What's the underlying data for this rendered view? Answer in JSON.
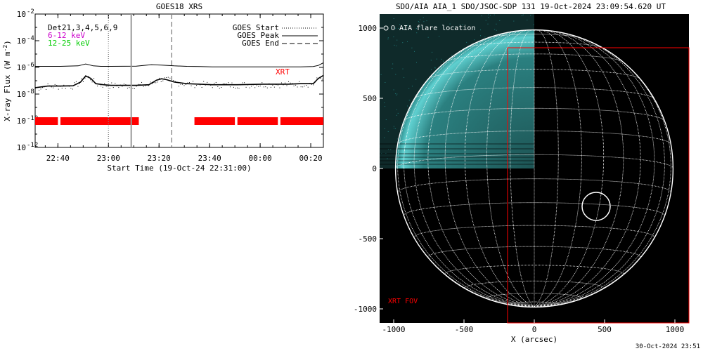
{
  "colors": {
    "flux_long": "#000000",
    "flux_short": "#000000",
    "xrt_bar": "#ff0000",
    "xrt_label": "#ff0000",
    "ch_6_12": "#cc00cc",
    "ch_12_25": "#00cc00",
    "aia_tint": "#33cccc",
    "grid": "#ffffff",
    "fov": "#ff0000"
  },
  "goes": {
    "title": "GOES18 XRS",
    "ylabel": "X-ray Flux (W m",
    "ylabel_sup": "-2",
    "ylabel_close": ")",
    "xlabel": "Start Time (19-Oct-24 22:31:00)",
    "channels": [
      "Det21,3,4,5,6,9",
      "6-12 keV",
      "12-25 keV"
    ],
    "legend": [
      "GOES Start",
      "GOES Peak",
      "GOES End"
    ],
    "xrt_label": "XRT",
    "yticks": [
      "10",
      "10",
      "10",
      "10",
      "10",
      "10"
    ],
    "ytick_exps": [
      "-2",
      "-4",
      "-6",
      "-8",
      "-10",
      "-12"
    ],
    "xticks": [
      "22:40",
      "23:00",
      "23:20",
      "23:40",
      "00:00",
      "00:20"
    ]
  },
  "aia": {
    "title": "SDO/AIA AIA_1 SDO/JSOC-SDP 131 19-Oct-2024 23:09:54.620 UT",
    "legend": "O AIA flare location",
    "fov_label": "XRT FOV",
    "xlabel": "X (arcsec)",
    "yticks": [
      "1000",
      "500",
      "0",
      "-500",
      "-1000"
    ],
    "xticks": [
      "-1000",
      "-500",
      "0",
      "500",
      "1000"
    ]
  },
  "footer": "30-Oct-2024 23:51",
  "chart_data": [
    {
      "type": "line",
      "title": "GOES18 XRS",
      "xlabel": "Start Time (19-Oct-24 22:31:00)",
      "ylabel": "X-ray Flux (W m-2)",
      "yscale": "log",
      "ylim": [
        1e-12,
        0.01
      ],
      "xlim_minutes_after_start": [
        0,
        114
      ],
      "x_unit": "minutes after 19-Oct-24 22:31:00",
      "series": [
        {
          "name": "6-12 keV",
          "x": [
            0,
            10,
            17,
            20,
            23,
            26,
            30,
            40,
            46,
            50,
            55,
            60,
            65,
            70,
            80,
            90,
            100,
            105,
            110,
            112,
            114
          ],
          "values": [
            1.2e-06,
            1.2e-06,
            1.3e-06,
            1.8e-06,
            1.3e-06,
            1.2e-06,
            1.2e-06,
            1.25e-06,
            1.6e-06,
            1.5e-06,
            1.3e-06,
            1.2e-06,
            1.15e-06,
            1.1e-06,
            1.1e-06,
            1.1e-06,
            1.1e-06,
            1.1e-06,
            1.15e-06,
            1.4e-06,
            2.2e-06
          ]
        },
        {
          "name": "12-25 keV",
          "x": [
            0,
            5,
            10,
            15,
            18,
            20,
            22,
            24,
            27,
            30,
            35,
            40,
            45,
            48,
            50,
            52,
            55,
            60,
            65,
            70,
            80,
            90,
            100,
            105,
            110,
            112,
            114
          ],
          "values": [
            3e-08,
            4e-08,
            4e-08,
            4.2e-08,
            8e-08,
            2.3e-07,
            1.5e-07,
            6e-08,
            5e-08,
            4.5e-08,
            4.5e-08,
            4.5e-08,
            5e-08,
            1.1e-07,
            1.4e-07,
            1.2e-07,
            8e-08,
            6e-08,
            5.5e-08,
            5e-08,
            5e-08,
            5.5e-08,
            5.5e-08,
            6e-08,
            6e-08,
            1.5e-07,
            2.5e-07
          ]
        }
      ],
      "markers": [
        {
          "name": "GOES Start",
          "style": "dotted",
          "x": 29
        },
        {
          "name": "GOES Peak",
          "style": "solid",
          "x": 38
        },
        {
          "name": "GOES End",
          "style": "dashed",
          "x": 54
        }
      ],
      "xrt_coverage": [
        [
          0,
          9
        ],
        [
          10,
          41
        ],
        [
          63,
          79
        ],
        [
          80,
          96
        ],
        [
          97,
          114
        ]
      ]
    },
    {
      "type": "scatter",
      "title": "SDO/AIA AIA_1 SDO/JSOC-SDP 131 19-Oct-2024 23:09:54.620 UT",
      "xlabel": "X (arcsec)",
      "xlim": [
        -1100,
        1100
      ],
      "ylim": [
        -1100,
        1100
      ],
      "solar_radius_arcsec": 987,
      "flare_location": {
        "x": 440,
        "y": -270,
        "radius": 100
      },
      "xrt_fov": {
        "x": [
          -190,
          1100
        ],
        "y": [
          -1100,
          860
        ]
      },
      "image_coverage": {
        "x": [
          -1100,
          0
        ],
        "y": [
          0,
          1100
        ]
      }
    }
  ]
}
